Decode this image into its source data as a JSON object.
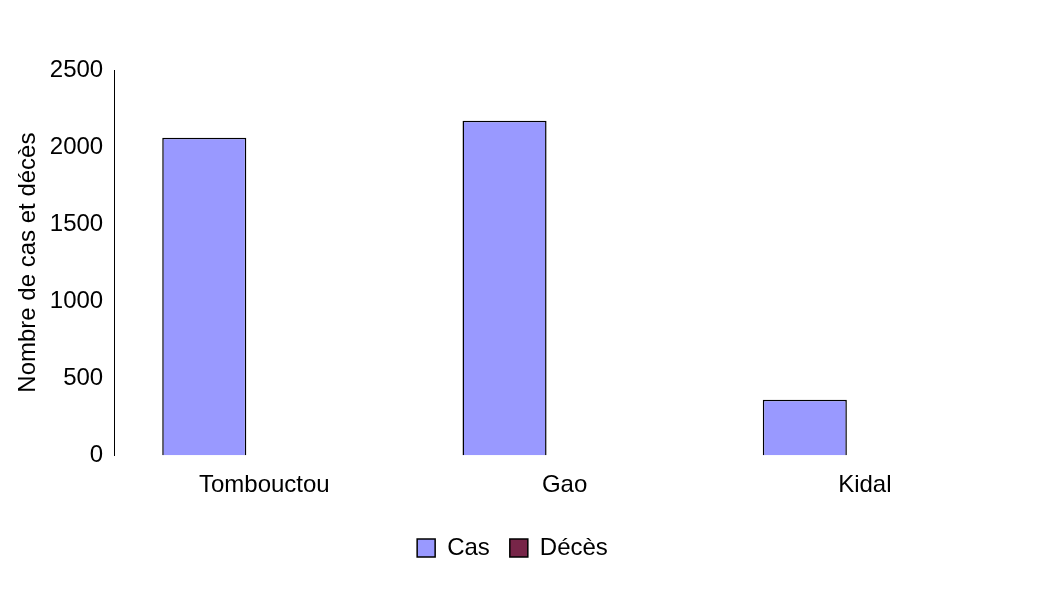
{
  "chart_data": {
    "type": "bar",
    "ylabel": "Nombre de cas et décès",
    "categories": [
      "Tombouctou",
      "Gao",
      "Kidal"
    ],
    "series": [
      {
        "name": "Cas",
        "color": "#9999ff",
        "values": [
          2060,
          2170,
          360
        ]
      },
      {
        "name": "Décès",
        "color": "#772548",
        "values": [
          0,
          0,
          0
        ]
      }
    ],
    "ylim": [
      0,
      2500
    ],
    "yticks": [
      0,
      500,
      1000,
      1500,
      2000,
      2500
    ],
    "grid": false,
    "legend": "bottom"
  }
}
